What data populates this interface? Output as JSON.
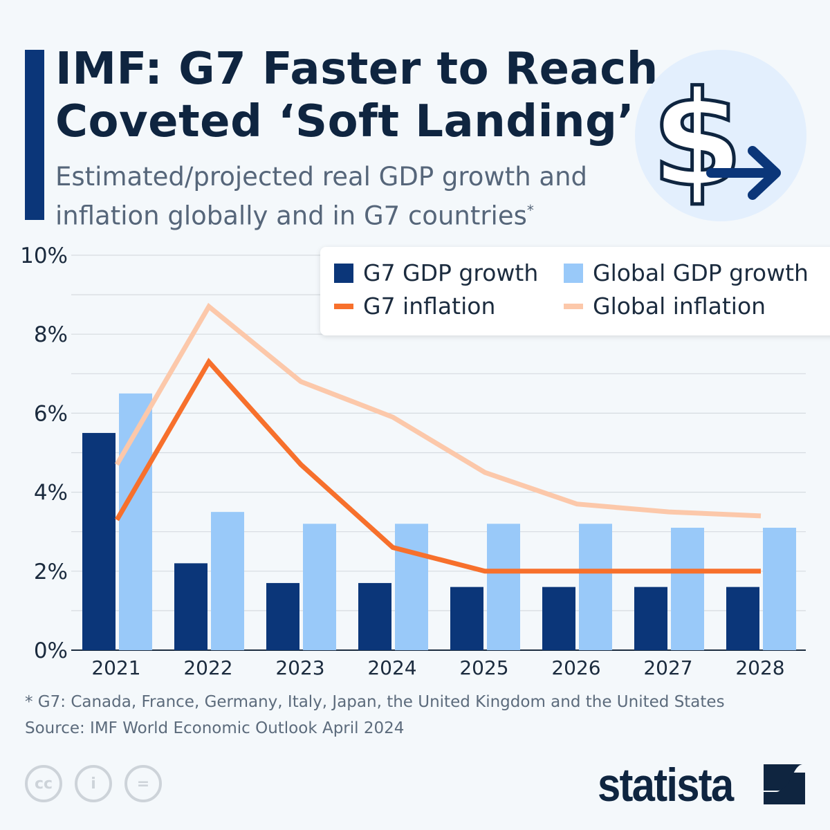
{
  "header": {
    "title_line1": "IMF: G7 Faster to Reach",
    "title_line2": "Coveted ‘Soft Landing’",
    "subtitle_line1": "Estimated/projected real GDP growth and",
    "subtitle_line2": "inflation globally and in G7 countries",
    "subtitle_mark": "*",
    "icon": "dollar-arrow-icon"
  },
  "chart_data": {
    "type": "bar+line",
    "categories": [
      "2021",
      "2022",
      "2023",
      "2024",
      "2025",
      "2026",
      "2027",
      "2028"
    ],
    "ylim": [
      0,
      10
    ],
    "yticks": [
      "0%",
      "2%",
      "4%",
      "6%",
      "8%",
      "10%"
    ],
    "grid": true,
    "legend_placement": "top-right",
    "series": [
      {
        "name": "G7 GDP growth",
        "type": "bar",
        "color": "#0b3679",
        "values": [
          5.5,
          2.2,
          1.7,
          1.7,
          1.6,
          1.6,
          1.6,
          1.6
        ]
      },
      {
        "name": "Global GDP growth",
        "type": "bar",
        "color": "#99c9f9",
        "values": [
          6.5,
          3.5,
          3.2,
          3.2,
          3.2,
          3.2,
          3.1,
          3.1
        ]
      },
      {
        "name": "G7 inflation",
        "type": "line",
        "color": "#f7702c",
        "values": [
          3.3,
          7.3,
          4.7,
          2.6,
          2.0,
          2.0,
          2.0,
          2.0
        ]
      },
      {
        "name": "Global inflation",
        "type": "line",
        "color": "#fcc8aa",
        "values": [
          4.7,
          8.7,
          6.8,
          5.9,
          4.5,
          3.7,
          3.5,
          3.4
        ]
      }
    ]
  },
  "footer": {
    "note": "* G7: Canada, France, Germany, Italy, Japan, the United Kingdom and the United States",
    "source": "Source: IMF World Economic Outlook April 2024",
    "license_icons": [
      "cc-icon",
      "attribution-icon",
      "no-derivatives-icon"
    ],
    "logo": "statista"
  }
}
